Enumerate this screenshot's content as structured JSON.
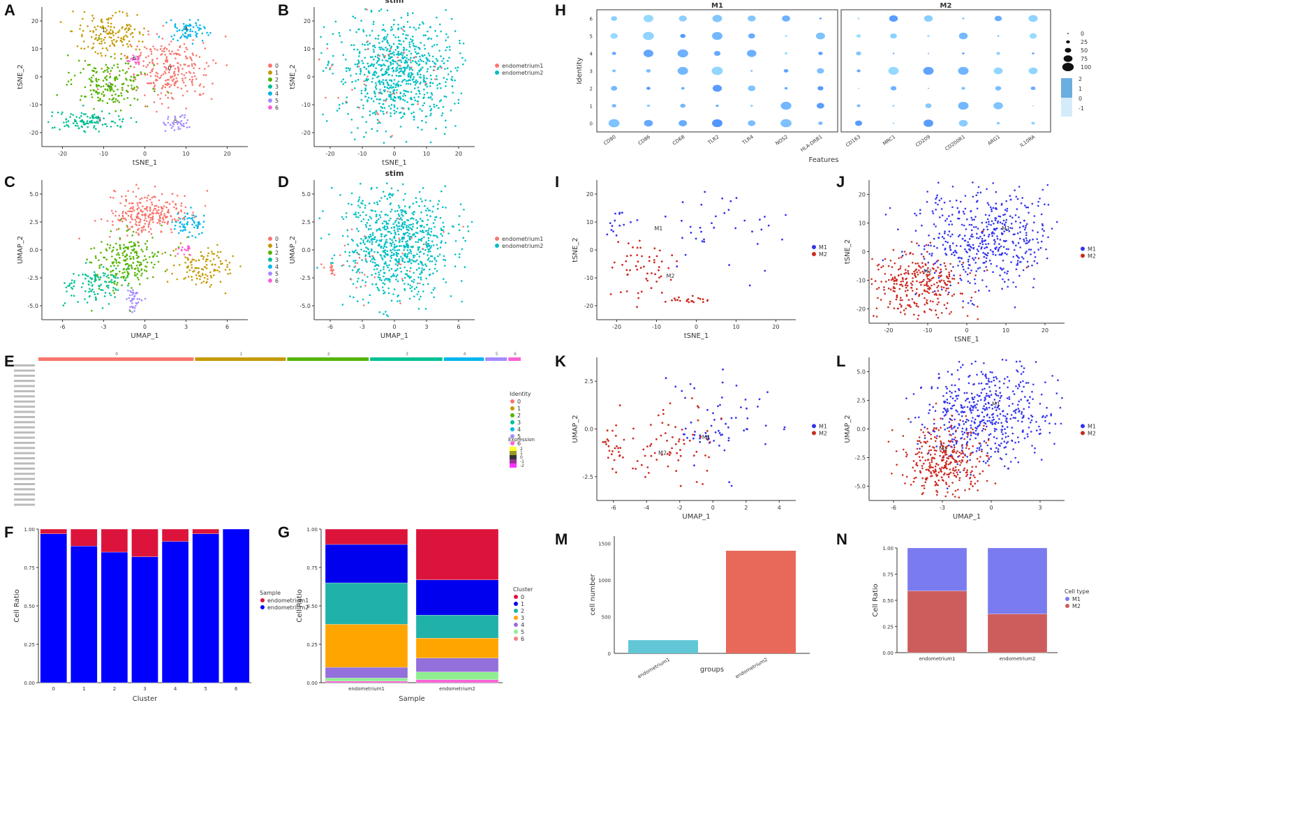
{
  "panel_letters": [
    "A",
    "B",
    "C",
    "D",
    "E",
    "F",
    "G",
    "H",
    "I",
    "J",
    "K",
    "L",
    "M",
    "N"
  ],
  "colors": {
    "c0": "#F8766D",
    "c1": "#C49A00",
    "c2": "#53B400",
    "c3": "#00C094",
    "c4": "#00B6EB",
    "c5": "#A58AFF",
    "c6": "#FB61D7",
    "endo1": "#F8766D",
    "endo2": "#00BFC4",
    "m1": "#3333ee",
    "m2": "#cc2a22",
    "bar_red": "#dc143c",
    "bar_blue": "#0000ff"
  },
  "chart_data": [
    {
      "id": "A",
      "type": "scatter",
      "title": "",
      "xlabel": "tSNE_1",
      "ylabel": "tSNE_2",
      "xticks": [
        "-20",
        "-10",
        "0",
        "10",
        "20"
      ],
      "yticks": [
        "20",
        "10",
        "0",
        "-10",
        "-20"
      ],
      "xlim": [
        -30,
        30
      ],
      "ylim": [
        -30,
        30
      ],
      "legend_title": "",
      "legend": [
        "0",
        "1",
        "2",
        "3",
        "4",
        "5",
        "6"
      ],
      "cluster_labels": [
        "0",
        "1",
        "2",
        "3",
        "4",
        "5",
        "6"
      ]
    },
    {
      "id": "B",
      "type": "scatter",
      "title": "stim",
      "xlabel": "tSNE_1",
      "ylabel": "tSNE_2",
      "xticks": [
        "-20",
        "-10",
        "0",
        "10",
        "20"
      ],
      "yticks": [
        "20",
        "10",
        "0",
        "-10",
        "-20"
      ],
      "xlim": [
        -30,
        30
      ],
      "ylim": [
        -30,
        30
      ],
      "legend": [
        "endometrium1",
        "endometrium2"
      ]
    },
    {
      "id": "C",
      "type": "scatter",
      "title": "",
      "xlabel": "UMAP_1",
      "ylabel": "UMAP_2",
      "xticks": [
        "-6",
        "-3",
        "0",
        "3",
        "6"
      ],
      "yticks": [
        "5.0",
        "2.5",
        "0.0",
        "-2.5",
        "-5.0"
      ],
      "xlim": [
        -7,
        7
      ],
      "ylim": [
        -6,
        6
      ],
      "legend": [
        "0",
        "1",
        "2",
        "3",
        "4",
        "5",
        "6"
      ]
    },
    {
      "id": "D",
      "type": "scatter",
      "title": "stim",
      "xlabel": "UMAP_1",
      "ylabel": "UMAP_2",
      "xticks": [
        "-6",
        "-3",
        "0",
        "3",
        "6"
      ],
      "yticks": [
        "5.0",
        "2.5",
        "0.0",
        "-2.5",
        "-5.0"
      ],
      "xlim": [
        -7,
        7
      ],
      "ylim": [
        -6,
        6
      ],
      "legend": [
        "endometrium1",
        "endometrium2"
      ]
    },
    {
      "id": "E",
      "type": "heatmap",
      "cluster_header": [
        "0",
        "1",
        "2",
        "3",
        "4",
        "5",
        "6"
      ],
      "cluster_widths": [
        0.34,
        0.2,
        0.18,
        0.16,
        0.09,
        0.05,
        0.03
      ],
      "legend_title": "Identity",
      "legend": [
        "0",
        "1",
        "2",
        "3",
        "4",
        "5",
        "6"
      ],
      "scale_title": "Expression",
      "scale_ticks": [
        "2",
        "1",
        "0",
        "-1",
        "-2"
      ],
      "n_genes": 28
    },
    {
      "id": "F",
      "type": "bar",
      "stacked": true,
      "xlabel": "Cluster",
      "ylabel": "Cell Ratio",
      "categories": [
        "0",
        "1",
        "2",
        "3",
        "4",
        "5",
        "6"
      ],
      "yticks": [
        "1.00",
        "0.75",
        "0.50",
        "0.25",
        "0.00"
      ],
      "ylim": [
        0,
        1
      ],
      "series": [
        {
          "name": "endometrium2",
          "values": [
            0.97,
            0.89,
            0.85,
            0.82,
            0.92,
            0.97,
            1.0
          ]
        },
        {
          "name": "endometrium1",
          "values": [
            0.03,
            0.11,
            0.15,
            0.18,
            0.08,
            0.03,
            0.0
          ]
        }
      ],
      "legend_title": "Sample"
    },
    {
      "id": "G",
      "type": "bar",
      "stacked": true,
      "xlabel": "Sample",
      "ylabel": "Cell Ratio",
      "categories": [
        "endometrium1",
        "endometrium2"
      ],
      "yticks": [
        "1.00",
        "0.75",
        "0.50",
        "0.25",
        "0.00"
      ],
      "ylim": [
        0,
        1
      ],
      "series": [
        {
          "name": "6",
          "values": [
            0.01,
            0.02
          ]
        },
        {
          "name": "5",
          "values": [
            0.02,
            0.05
          ]
        },
        {
          "name": "4",
          "values": [
            0.07,
            0.09
          ]
        },
        {
          "name": "3",
          "values": [
            0.28,
            0.13
          ]
        },
        {
          "name": "2",
          "values": [
            0.27,
            0.15
          ]
        },
        {
          "name": "1",
          "values": [
            0.25,
            0.23
          ]
        },
        {
          "name": "0",
          "values": [
            0.1,
            0.33
          ]
        }
      ],
      "legend_title": "Cluster",
      "legend": [
        "0",
        "1",
        "2",
        "3",
        "4",
        "5",
        "6"
      ]
    },
    {
      "id": "H",
      "type": "dotplot",
      "facets": [
        "M1",
        "M2"
      ],
      "features_m1": [
        "CD80",
        "CD86",
        "CD68",
        "TLR2",
        "TLR4",
        "NOS2",
        "HLA-DRB1"
      ],
      "features_m2": [
        "CD163",
        "MRC1",
        "CD209",
        "CD200R1",
        "ARG1",
        "IL10RA"
      ],
      "xlabel": "Features",
      "ylabel": "Identity",
      "identities": [
        "6",
        "5",
        "4",
        "3",
        "2",
        "1",
        "0"
      ],
      "size_legend": [
        "0",
        "25",
        "50",
        "75",
        "100"
      ],
      "color_legend": [
        "2",
        "1",
        "0",
        "-1"
      ]
    },
    {
      "id": "I",
      "type": "scatter",
      "xlabel": "tSNE_1",
      "ylabel": "tSNE_2",
      "xticks": [
        "-20",
        "-10",
        "0",
        "10",
        "20"
      ],
      "yticks": [
        "20",
        "10",
        "0",
        "-10",
        "-20"
      ],
      "legend": [
        "M1",
        "M2"
      ],
      "labels": [
        "M1",
        "M2"
      ]
    },
    {
      "id": "J",
      "type": "scatter",
      "xlabel": "tSNE_1",
      "ylabel": "tSNE_2",
      "xticks": [
        "-20",
        "-10",
        "0",
        "10",
        "20"
      ],
      "yticks": [
        "20",
        "10",
        "0",
        "-10",
        "-20"
      ],
      "legend": [
        "M1",
        "M2"
      ],
      "labels": [
        "M1",
        "M2"
      ]
    },
    {
      "id": "K",
      "type": "scatter",
      "xlabel": "UMAP_1",
      "ylabel": "UMAP_2",
      "xticks": [
        "-6",
        "-4",
        "-2",
        "0",
        "2",
        "4"
      ],
      "yticks": [
        "2.5",
        "0.0",
        "-2.5"
      ],
      "legend": [
        "M1",
        "M2"
      ],
      "labels": [
        "M1",
        "M2"
      ]
    },
    {
      "id": "L",
      "type": "scatter",
      "xlabel": "UMAP_1",
      "ylabel": "UMAP_2",
      "xticks": [
        "-6",
        "-3",
        "0",
        "3"
      ],
      "yticks": [
        "5.0",
        "2.5",
        "0.0",
        "-2.5",
        "-5.0"
      ],
      "legend": [
        "M1",
        "M2"
      ],
      "labels": [
        "M1",
        "M2"
      ]
    },
    {
      "id": "M",
      "type": "bar",
      "xlabel": "groups",
      "ylabel": "cell number",
      "categories": [
        "endometrium1",
        "endometrium2"
      ],
      "values": [
        180,
        1400
      ],
      "colors": [
        "#61C7D6",
        "#E8695A"
      ],
      "yticks": [
        "1500",
        "1000",
        "500",
        "0"
      ],
      "ylim": [
        0,
        1600
      ]
    },
    {
      "id": "N",
      "type": "bar",
      "stacked": true,
      "xlabel": "",
      "ylabel": "Cell Ratio",
      "categories": [
        "endometrium1",
        "endometrium2"
      ],
      "yticks": [
        "1.00",
        "0.75",
        "0.50",
        "0.25",
        "0.00"
      ],
      "ylim": [
        0,
        1
      ],
      "series": [
        {
          "name": "M2",
          "values": [
            0.59,
            0.37
          ]
        },
        {
          "name": "M1",
          "values": [
            0.41,
            0.63
          ]
        }
      ],
      "legend_title": "Cell type",
      "legend": [
        "M1",
        "M2"
      ]
    }
  ]
}
